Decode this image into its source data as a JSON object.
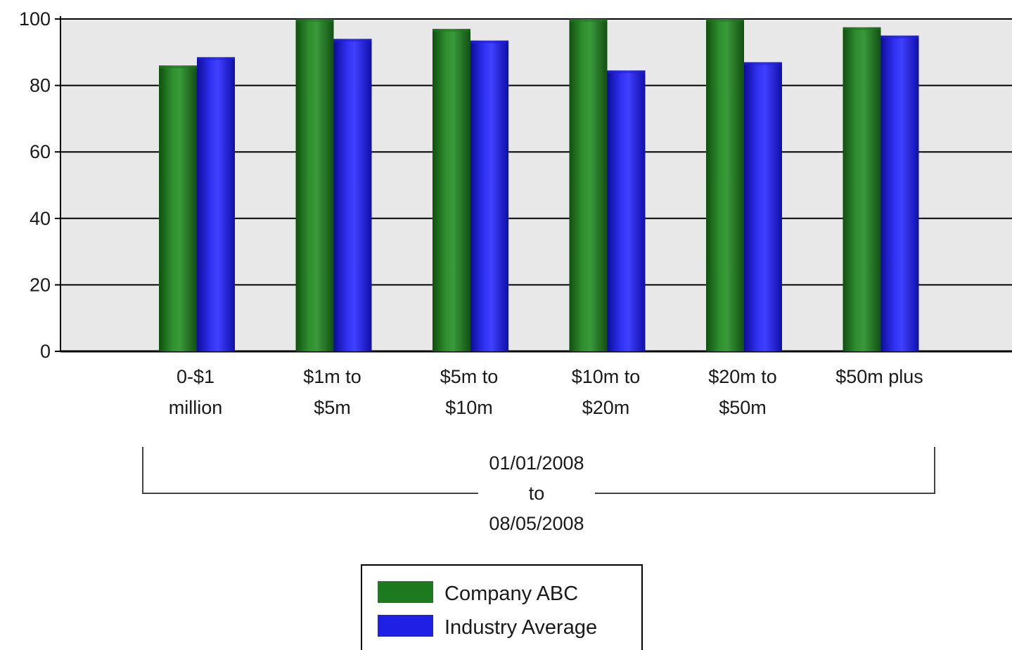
{
  "chart_data": {
    "type": "bar",
    "title": "",
    "xlabel": "",
    "ylabel": "",
    "ylim": [
      0,
      100
    ],
    "yticks": [
      0,
      20,
      40,
      60,
      80,
      100
    ],
    "grid": true,
    "legend_position": "bottom",
    "categories": [
      [
        "0-$1",
        "million"
      ],
      [
        "$1m to",
        "$5m"
      ],
      [
        "$5m to",
        "$10m"
      ],
      [
        "$10m to",
        "$20m"
      ],
      [
        "$20m to",
        "$50m"
      ],
      [
        "$50m plus"
      ]
    ],
    "period_label": [
      "01/01/2008",
      "to",
      "08/05/2008"
    ],
    "series": [
      {
        "name": "Company ABC",
        "color": "#1e7a1e",
        "values": [
          86,
          100,
          97,
          100,
          100,
          97.5
        ]
      },
      {
        "name": "Industry Average",
        "color": "#1f1fe6",
        "values": [
          88.5,
          94,
          93.5,
          84.5,
          87,
          95
        ]
      }
    ]
  }
}
